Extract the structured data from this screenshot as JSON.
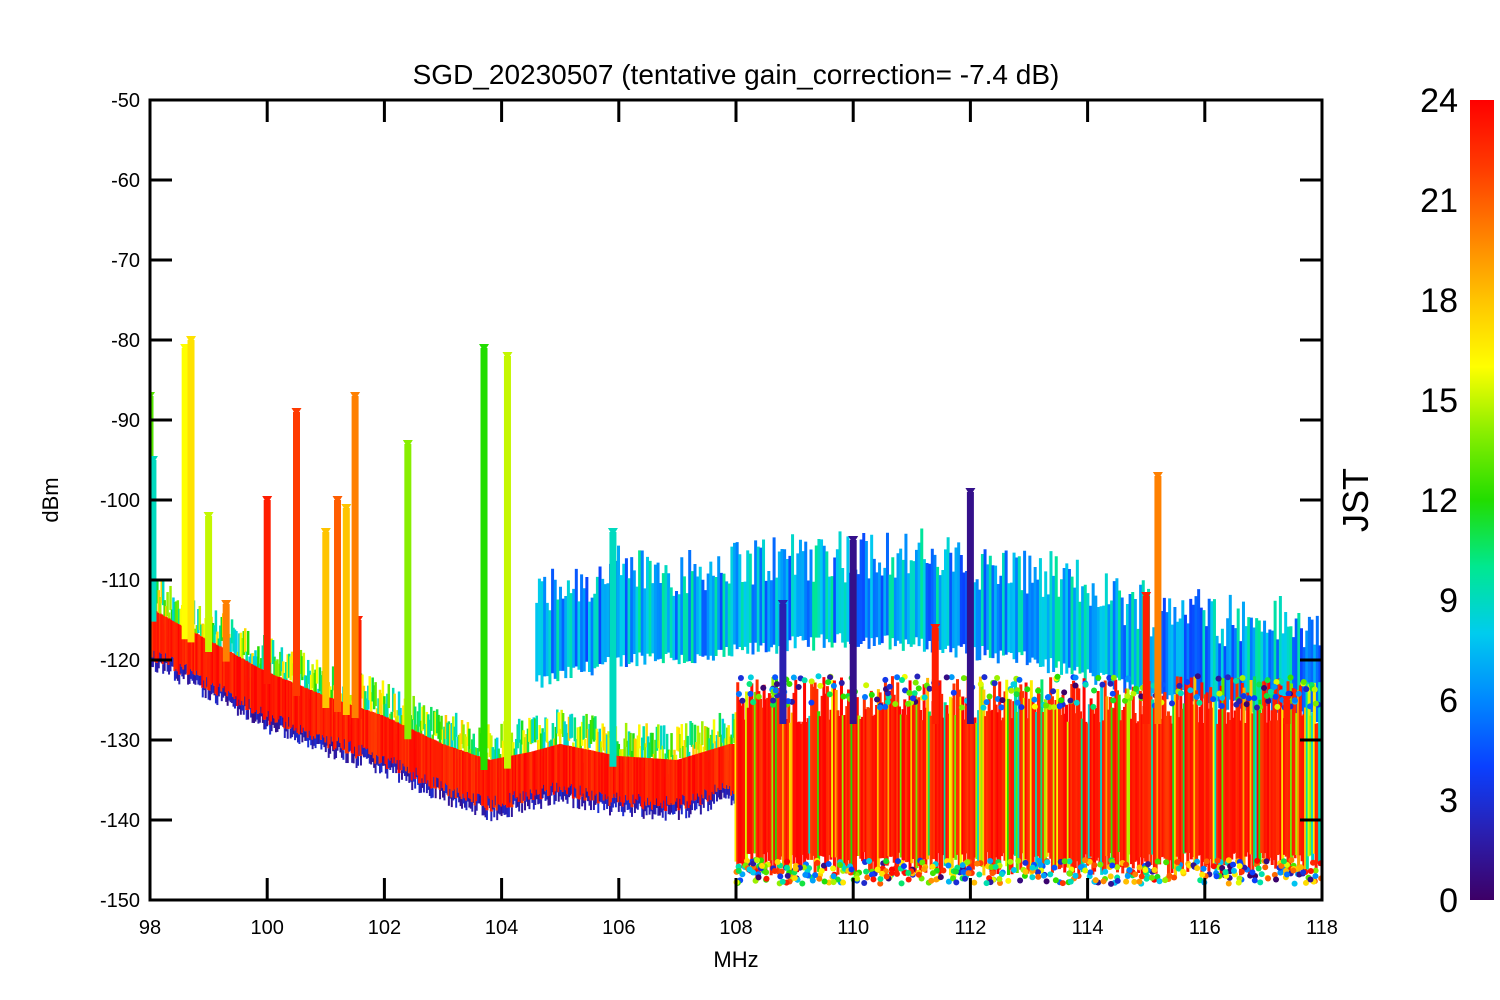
{
  "chart_data": {
    "type": "scatter",
    "title": "SGD_20230507 (tentative gain_correction= -7.4 dB)",
    "xlabel": "MHz",
    "ylabel": "dBm",
    "xlim": [
      98,
      118
    ],
    "ylim": [
      -150,
      -50
    ],
    "x_ticks": [
      98,
      100,
      102,
      104,
      106,
      108,
      110,
      112,
      114,
      116,
      118
    ],
    "x_tick_labels": [
      "98",
      "100",
      "102",
      "104",
      "106",
      "108",
      "110",
      "112",
      "114",
      "116",
      "118"
    ],
    "y_ticks": [
      -50,
      -60,
      -70,
      -80,
      -90,
      -100,
      -110,
      -120,
      -130,
      -140,
      -150
    ],
    "y_tick_labels": [
      "-50",
      "-60",
      "-70",
      "-80",
      "-90",
      "-100",
      "-110",
      "-120",
      "-130",
      "-140",
      "-150"
    ],
    "grid": false,
    "colorbar": {
      "title": "JST",
      "range": [
        0,
        24
      ],
      "ticks": [
        0,
        3,
        6,
        9,
        12,
        15,
        18,
        21,
        24
      ],
      "tick_labels": [
        "0",
        "3",
        "6",
        "9",
        "12",
        "15",
        "18",
        "21",
        "24"
      ],
      "colormap": [
        "#3d0066",
        "#2a1fb0",
        "#0a40ff",
        "#0088ff",
        "#00ccee",
        "#00e890",
        "#22dd00",
        "#88ee00",
        "#ffff00",
        "#ffc400",
        "#ff8000",
        "#ff3a00",
        "#ff0000"
      ]
    },
    "noise_floor": {
      "note": "values are data units (MHz, dBm)",
      "x": [
        98.0,
        99.0,
        100.0,
        101.0,
        102.0,
        103.0,
        103.8,
        104.5,
        105.0,
        106.0,
        107.0,
        107.9
      ],
      "y": [
        -115,
        -119,
        -123,
        -126,
        -128.5,
        -132,
        -134,
        -133,
        -132,
        -133.5,
        -134,
        -132
      ]
    },
    "wideband_region": {
      "x_start": 108.0,
      "x_end": 118.0,
      "y_low": -144,
      "y_high": -126
    },
    "early_hours_hump": {
      "x": [
        104.6,
        105.5,
        106.5,
        107.5,
        108.0,
        109.0,
        110.0,
        111.0,
        112.0,
        113.0,
        114.0,
        115.0,
        116.0,
        117.0,
        118.0
      ],
      "y": [
        -123,
        -121,
        -119.5,
        -120,
        -119,
        -118,
        -117.5,
        -118,
        -119,
        -120,
        -122,
        -124,
        -125,
        -126,
        -127
      ],
      "jst": 4
    },
    "spikes": [
      {
        "x": 98.0,
        "top": -87,
        "jst": 13
      },
      {
        "x": 98.05,
        "top": -95,
        "jst": 9
      },
      {
        "x": 98.6,
        "top": -81,
        "jst": 16
      },
      {
        "x": 98.7,
        "top": -80,
        "jst": 17
      },
      {
        "x": 99.0,
        "top": -102,
        "jst": 15
      },
      {
        "x": 99.3,
        "top": -113,
        "jst": 20
      },
      {
        "x": 100.0,
        "top": -100,
        "jst": 23
      },
      {
        "x": 100.5,
        "top": -89,
        "jst": 22
      },
      {
        "x": 101.0,
        "top": -104,
        "jst": 18
      },
      {
        "x": 101.2,
        "top": -100,
        "jst": 21
      },
      {
        "x": 101.35,
        "top": -101,
        "jst": 18
      },
      {
        "x": 101.55,
        "top": -115,
        "jst": 23
      },
      {
        "x": 101.5,
        "top": -87,
        "jst": 20
      },
      {
        "x": 102.4,
        "top": -93,
        "jst": 14
      },
      {
        "x": 103.7,
        "top": -81,
        "jst": 12
      },
      {
        "x": 104.1,
        "top": -82,
        "jst": 15
      },
      {
        "x": 105.9,
        "top": -104,
        "jst": 9
      },
      {
        "x": 108.8,
        "top": -113,
        "jst": 2
      },
      {
        "x": 110.0,
        "top": -105,
        "jst": 1
      },
      {
        "x": 111.4,
        "top": -116,
        "jst": 23
      },
      {
        "x": 112.0,
        "top": -99,
        "jst": 1
      },
      {
        "x": 115.0,
        "top": -112,
        "jst": 23
      },
      {
        "x": 115.2,
        "top": -97,
        "jst": 20
      },
      {
        "x": 117.4,
        "top": -125,
        "jst": 23
      }
    ]
  }
}
